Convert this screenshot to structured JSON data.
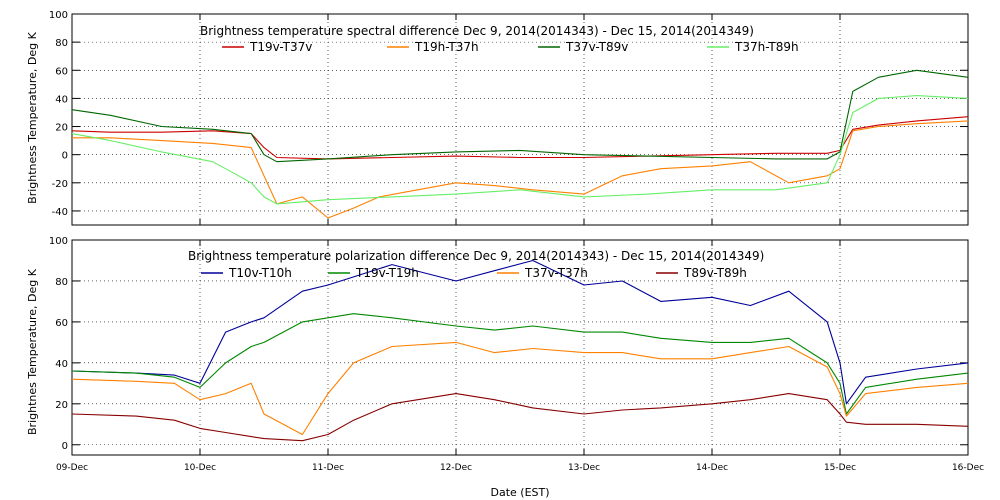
{
  "figure": {
    "xlabel": "Date (EST)",
    "x_categories": [
      "09-Dec",
      "10-Dec",
      "11-Dec",
      "12-Dec",
      "13-Dec",
      "14-Dec",
      "15-Dec",
      "16-Dec"
    ]
  },
  "chart_data": [
    {
      "type": "line",
      "title": "Brightness temperature spectral difference     Dec  9, 2014(2014343) - Dec 15, 2014(2014349)",
      "xlabel": "Date (EST)",
      "ylabel": "Brightness Temperature, Deg K",
      "x_categories": [
        "09-Dec",
        "10-Dec",
        "11-Dec",
        "12-Dec",
        "13-Dec",
        "14-Dec",
        "15-Dec",
        "16-Dec"
      ],
      "xlim": [
        0,
        7
      ],
      "ylim": [
        -50,
        100
      ],
      "yticks": [
        -40,
        -20,
        0,
        20,
        40,
        60,
        80,
        100
      ],
      "grid": true,
      "legend_position": "top",
      "series": [
        {
          "name": "T19v-T37v",
          "color": "#cc0000",
          "x": [
            0,
            0.3,
            0.7,
            1.1,
            1.4,
            1.5,
            1.6,
            2,
            2.5,
            3,
            3.5,
            4,
            4.5,
            5,
            5.5,
            5.9,
            6.0,
            6.1,
            6.3,
            6.6,
            7
          ],
          "y": [
            17,
            16,
            16,
            17,
            15,
            5,
            -2,
            -3,
            -2,
            -1,
            -2,
            -2,
            -1,
            0,
            1,
            1,
            3,
            18,
            21,
            24,
            27
          ]
        },
        {
          "name": "T19h-T37h",
          "color": "#ff8000",
          "x": [
            0,
            0.3,
            0.7,
            1.1,
            1.4,
            1.5,
            1.6,
            1.8,
            2,
            2.2,
            2.4,
            2.7,
            3,
            3.3,
            3.6,
            4,
            4.3,
            4.6,
            5,
            5.3,
            5.6,
            5.9,
            6.0,
            6.1,
            6.3,
            6.6,
            7
          ],
          "y": [
            12,
            12,
            10,
            8,
            5,
            -15,
            -35,
            -30,
            -45,
            -38,
            -30,
            -25,
            -20,
            -22,
            -25,
            -28,
            -15,
            -10,
            -8,
            -5,
            -20,
            -15,
            -10,
            17,
            20,
            22,
            24
          ]
        },
        {
          "name": "T37v-T89v",
          "color": "#006600",
          "x": [
            0,
            0.3,
            0.7,
            1.1,
            1.4,
            1.5,
            1.6,
            2,
            2.5,
            3,
            3.5,
            4,
            4.5,
            5,
            5.5,
            5.9,
            6.0,
            6.1,
            6.3,
            6.6,
            7
          ],
          "y": [
            32,
            28,
            20,
            18,
            15,
            0,
            -5,
            -3,
            0,
            2,
            3,
            0,
            -1,
            -2,
            -3,
            -3,
            2,
            45,
            55,
            60,
            55
          ]
        },
        {
          "name": "T37h-T89h",
          "color": "#66ee66",
          "x": [
            0,
            0.3,
            0.7,
            1.1,
            1.4,
            1.5,
            1.6,
            2,
            2.5,
            3,
            3.5,
            4,
            4.5,
            5,
            5.5,
            5.9,
            6.0,
            6.1,
            6.3,
            6.6,
            7
          ],
          "y": [
            15,
            10,
            2,
            -5,
            -20,
            -30,
            -35,
            -32,
            -30,
            -28,
            -25,
            -30,
            -28,
            -25,
            -25,
            -20,
            0,
            30,
            40,
            42,
            40
          ]
        }
      ]
    },
    {
      "type": "line",
      "title": "Brightness temperature polarization difference     Dec  9, 2014(2014343) - Dec 15, 2014(2014349)",
      "xlabel": "Date (EST)",
      "ylabel": "Brightnes Temperature, Deg K",
      "x_categories": [
        "09-Dec",
        "10-Dec",
        "11-Dec",
        "12-Dec",
        "13-Dec",
        "14-Dec",
        "15-Dec",
        "16-Dec"
      ],
      "xlim": [
        0,
        7
      ],
      "ylim": [
        -5,
        100
      ],
      "yticks": [
        0,
        20,
        40,
        60,
        80,
        100
      ],
      "grid": true,
      "legend_position": "top",
      "series": [
        {
          "name": "T10v-T10h",
          "color": "#000099",
          "x": [
            0,
            0.5,
            0.8,
            1.0,
            1.2,
            1.4,
            1.5,
            1.8,
            2.0,
            2.2,
            2.5,
            3.0,
            3.3,
            3.6,
            4.0,
            4.3,
            4.6,
            5.0,
            5.3,
            5.6,
            5.9,
            6.0,
            6.05,
            6.2,
            6.6,
            7
          ],
          "y": [
            36,
            35,
            34,
            30,
            55,
            60,
            62,
            75,
            78,
            82,
            88,
            80,
            85,
            90,
            78,
            80,
            70,
            72,
            68,
            75,
            60,
            40,
            20,
            33,
            37,
            40
          ]
        },
        {
          "name": "T19v-T19h",
          "color": "#008800",
          "x": [
            0,
            0.5,
            0.8,
            1.0,
            1.2,
            1.4,
            1.5,
            1.8,
            2.0,
            2.2,
            2.5,
            3.0,
            3.3,
            3.6,
            4.0,
            4.3,
            4.6,
            5.0,
            5.3,
            5.6,
            5.9,
            6.0,
            6.05,
            6.2,
            6.6,
            7
          ],
          "y": [
            36,
            35,
            33,
            28,
            40,
            48,
            50,
            60,
            62,
            64,
            62,
            58,
            56,
            58,
            55,
            55,
            52,
            50,
            50,
            52,
            40,
            30,
            15,
            28,
            32,
            35
          ]
        },
        {
          "name": "T37v-T37h",
          "color": "#ff8000",
          "x": [
            0,
            0.5,
            0.8,
            1.0,
            1.2,
            1.4,
            1.5,
            1.8,
            2.0,
            2.2,
            2.5,
            3.0,
            3.3,
            3.6,
            4.0,
            4.3,
            4.6,
            5.0,
            5.3,
            5.6,
            5.9,
            6.0,
            6.05,
            6.2,
            6.6,
            7
          ],
          "y": [
            32,
            31,
            30,
            22,
            25,
            30,
            15,
            5,
            25,
            40,
            48,
            50,
            45,
            47,
            45,
            45,
            42,
            42,
            45,
            48,
            38,
            25,
            14,
            25,
            28,
            30
          ]
        },
        {
          "name": "T89v-T89h",
          "color": "#880000",
          "x": [
            0,
            0.5,
            0.8,
            1.0,
            1.2,
            1.4,
            1.5,
            1.8,
            2.0,
            2.2,
            2.5,
            3.0,
            3.3,
            3.6,
            4.0,
            4.3,
            4.6,
            5.0,
            5.3,
            5.6,
            5.9,
            6.0,
            6.05,
            6.2,
            6.6,
            7
          ],
          "y": [
            15,
            14,
            12,
            8,
            6,
            4,
            3,
            2,
            5,
            12,
            20,
            25,
            22,
            18,
            15,
            17,
            18,
            20,
            22,
            25,
            22,
            15,
            11,
            10,
            10,
            9
          ]
        }
      ]
    }
  ]
}
